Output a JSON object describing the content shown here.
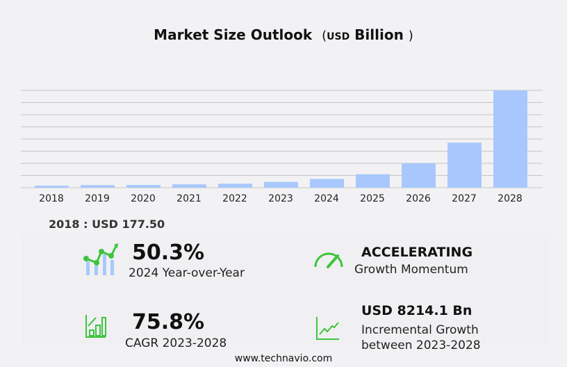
{
  "title": {
    "main": "Market Size Outlook",
    "open": "(",
    "unit": "USD",
    "unit2": "Billion",
    "close": ")"
  },
  "chart_data": {
    "type": "bar",
    "title": "Market Size Outlook (USD Billion)",
    "categories": [
      "2018",
      "2019",
      "2020",
      "2021",
      "2022",
      "2023",
      "2024",
      "2025",
      "2026",
      "2027",
      "2028"
    ],
    "values": [
      177.5,
      231,
      240,
      293,
      356,
      522,
      785,
      1204,
      2184,
      4037,
      8736
    ],
    "ylim": [
      0,
      8736
    ],
    "grid": true,
    "gridlines": 9,
    "bar_color": "#a8c8fd",
    "xlabel": "",
    "ylabel": ""
  },
  "base_label": "2018 : USD  177.50",
  "stats": {
    "yoy_value": "50.3%",
    "yoy_label": "2024 Year-over-Year",
    "momentum_value": "ACCELERATING",
    "momentum_label": "Growth Momentum",
    "cagr_value": "75.8%",
    "cagr_label": "CAGR 2023-2028",
    "incr_value": "USD 8214.1 Bn",
    "incr_label1": "Incremental Growth",
    "incr_label2": "between 2023-2028"
  },
  "colors": {
    "green": "#3cc43c",
    "bar": "#a8c8fd"
  },
  "footer": "www.technavio.com"
}
